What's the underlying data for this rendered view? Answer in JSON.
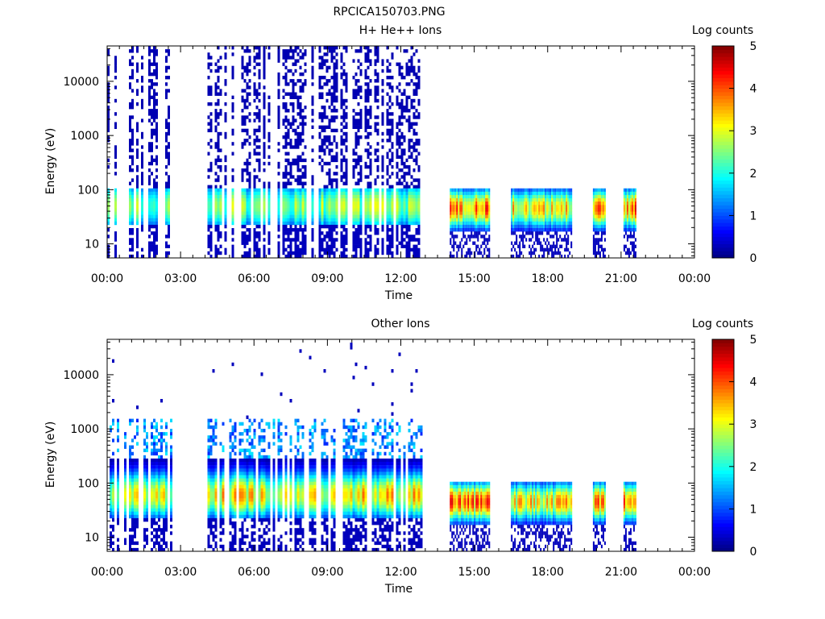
{
  "page_title": "RPCICA150703.PNG",
  "colors": {
    "colormap": [
      "#00007f",
      "#0000ff",
      "#007fff",
      "#00ffff",
      "#7fff7f",
      "#ffff00",
      "#ff7f00",
      "#ff0000",
      "#7f0000"
    ],
    "axes": "#000000",
    "background": "#ffffff"
  },
  "chart_data": [
    {
      "type": "heatmap",
      "title": "H+ He++ Ions",
      "xlabel": "Time",
      "ylabel": "Energy (eV)",
      "x_ticks": [
        "00:00",
        "03:00",
        "06:00",
        "09:00",
        "12:00",
        "15:00",
        "18:00",
        "21:00",
        "00:00"
      ],
      "xlim_hours": [
        0,
        24
      ],
      "y_scale": "log",
      "y_ticks": [
        "10",
        "100",
        "1000",
        "10000"
      ],
      "ylim": [
        5.5,
        45000
      ],
      "colorbar": {
        "label": "Log counts",
        "ticks": [
          "0",
          "1",
          "2",
          "3",
          "4",
          "5"
        ],
        "range": [
          0,
          5
        ]
      },
      "blocks": [
        {
          "start_h": 0.0,
          "end_h": 2.65,
          "style": "bursty",
          "peak": 3.0,
          "peak_ev": 50
        },
        {
          "start_h": 4.1,
          "end_h": 12.8,
          "style": "bursty",
          "peak": 3.1,
          "peak_ev": 50
        },
        {
          "start_h": 14.0,
          "end_h": 15.6,
          "style": "dense",
          "peak": 4.6,
          "peak_ev": 45
        },
        {
          "start_h": 16.5,
          "end_h": 19.0,
          "style": "dense",
          "peak": 4.0,
          "peak_ev": 45
        },
        {
          "start_h": 19.85,
          "end_h": 20.35,
          "style": "dense",
          "peak": 4.4,
          "peak_ev": 45
        },
        {
          "start_h": 21.1,
          "end_h": 21.6,
          "style": "dense",
          "peak": 4.6,
          "peak_ev": 45
        }
      ]
    },
    {
      "type": "heatmap",
      "title": "Other Ions",
      "xlabel": "Time",
      "ylabel": "Energy (eV)",
      "x_ticks": [
        "00:00",
        "03:00",
        "06:00",
        "09:00",
        "12:00",
        "15:00",
        "18:00",
        "21:00",
        "00:00"
      ],
      "xlim_hours": [
        0,
        24
      ],
      "y_scale": "log",
      "y_ticks": [
        "10",
        "100",
        "1000",
        "10000"
      ],
      "ylim": [
        5.5,
        45000
      ],
      "colorbar": {
        "label": "Log counts",
        "ticks": [
          "0",
          "1",
          "2",
          "3",
          "4",
          "5"
        ],
        "range": [
          0,
          5
        ]
      },
      "blocks": [
        {
          "start_h": 0.0,
          "end_h": 2.65,
          "style": "sparse",
          "peak": 3.8,
          "peak_ev": 60
        },
        {
          "start_h": 4.1,
          "end_h": 12.8,
          "style": "sparse",
          "peak": 3.9,
          "peak_ev": 60
        },
        {
          "start_h": 14.0,
          "end_h": 15.6,
          "style": "dense",
          "peak": 4.6,
          "peak_ev": 45
        },
        {
          "start_h": 16.5,
          "end_h": 19.0,
          "style": "dense",
          "peak": 4.0,
          "peak_ev": 45
        },
        {
          "start_h": 19.85,
          "end_h": 20.35,
          "style": "dense",
          "peak": 4.4,
          "peak_ev": 45
        },
        {
          "start_h": 21.1,
          "end_h": 21.6,
          "style": "dense",
          "peak": 4.6,
          "peak_ev": 45
        }
      ]
    }
  ]
}
